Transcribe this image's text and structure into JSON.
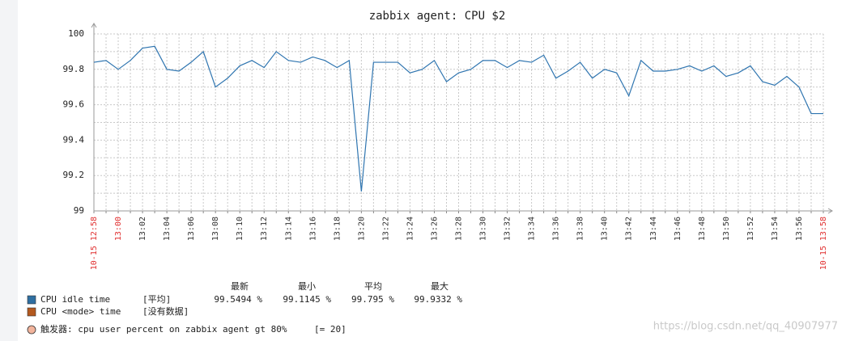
{
  "chart_data": {
    "type": "line",
    "title": "zabbix agent: CPU $2",
    "categories": [
      "10-15 12:58",
      null,
      "13:00",
      null,
      "13:02",
      null,
      "13:04",
      null,
      "13:06",
      null,
      "13:08",
      null,
      "13:10",
      null,
      "13:12",
      null,
      "13:14",
      null,
      "13:16",
      null,
      "13:18",
      null,
      "13:20",
      null,
      "13:22",
      null,
      "13:24",
      null,
      "13:26",
      null,
      "13:28",
      null,
      "13:30",
      null,
      "13:32",
      null,
      "13:34",
      null,
      "13:36",
      null,
      "13:38",
      null,
      "13:40",
      null,
      "13:42",
      null,
      "13:44",
      null,
      "13:46",
      null,
      "13:48",
      null,
      "13:50",
      null,
      "13:52",
      null,
      "13:54",
      null,
      "13:56",
      null,
      "10-15 13:58"
    ],
    "series": [
      {
        "name": "CPU idle time",
        "color": "#2f75b0",
        "values": [
          99.84,
          99.85,
          99.8,
          99.85,
          99.92,
          99.93,
          99.8,
          99.79,
          99.84,
          99.9,
          99.7,
          99.75,
          99.82,
          99.85,
          99.81,
          99.9,
          99.85,
          99.84,
          99.87,
          99.85,
          99.81,
          99.85,
          99.11,
          99.84,
          99.84,
          99.84,
          99.78,
          99.8,
          99.85,
          99.73,
          99.78,
          99.8,
          99.85,
          99.85,
          99.81,
          99.85,
          99.84,
          99.88,
          99.75,
          99.79,
          99.84,
          99.75,
          99.8,
          99.78,
          99.65,
          99.85,
          99.79,
          99.79,
          99.8,
          99.82,
          99.79,
          99.82,
          99.76,
          99.78,
          99.82,
          99.73,
          99.71,
          99.76,
          99.7,
          99.55,
          99.55
        ]
      }
    ],
    "ylim": [
      99,
      100
    ],
    "yticks": [
      99,
      99.2,
      99.4,
      99.6,
      99.8,
      100
    ],
    "grid": true,
    "legend": {
      "headers": [
        "最新",
        "最小",
        "平均",
        "最大"
      ],
      "rows": [
        {
          "color": "#2f6fa1",
          "name": "CPU idle time",
          "func": "[平均]",
          "cells": [
            "99.5494 %",
            "99.1145 %",
            "99.795 %",
            "99.9332 %"
          ]
        },
        {
          "color": "#b3591f",
          "name": "CPU <mode> time",
          "func": "[没有数据]",
          "cells": []
        }
      ],
      "trigger": {
        "color": "#f2b49c",
        "name": "触发器: cpu user percent on zabbix agent gt 80%",
        "value": "[= 20]"
      }
    },
    "watermark": "https://blog.csdn.net/qq_40907977"
  }
}
